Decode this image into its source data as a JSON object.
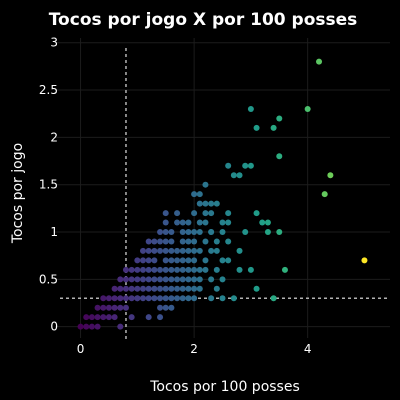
{
  "chart_data": {
    "type": "scatter",
    "title": "Tocos por jogo X por 100 posses",
    "xlabel": "Tocos por 100 posses",
    "ylabel": "Tocos por jogo",
    "xlim": [
      -0.45,
      5.45
    ],
    "ylim": [
      -0.12,
      3.05
    ],
    "x_ticks": [
      0,
      2,
      4
    ],
    "y_ticks": [
      0,
      0.5,
      1,
      1.5,
      2,
      2.5,
      3
    ],
    "x_tick_labels": [
      "0",
      "2",
      "4"
    ],
    "y_tick_labels": [
      "0",
      "0.5",
      "1",
      "1.5",
      "2",
      "2.5",
      "3"
    ],
    "grid": true,
    "colorscale": "viridis",
    "color_by": "x",
    "color_range": [
      0,
      5
    ],
    "reference_lines": {
      "x": 0.8,
      "y": 0.3
    },
    "points": [
      [
        0,
        0
      ],
      [
        0.1,
        0
      ],
      [
        0.2,
        0
      ],
      [
        0.3,
        0
      ],
      [
        0.2,
        0.1
      ],
      [
        0.3,
        0.1
      ],
      [
        0.4,
        0.1
      ],
      [
        0.5,
        0.1
      ],
      [
        0.6,
        0.1
      ],
      [
        0.1,
        0.1
      ],
      [
        0.3,
        0.2
      ],
      [
        0.4,
        0.2
      ],
      [
        0.5,
        0.2
      ],
      [
        0.6,
        0.2
      ],
      [
        0.7,
        0.2
      ],
      [
        0.8,
        0.2
      ],
      [
        0.4,
        0.3
      ],
      [
        0.5,
        0.3
      ],
      [
        0.6,
        0.3
      ],
      [
        0.7,
        0.3
      ],
      [
        0.8,
        0.3
      ],
      [
        0.9,
        0.3
      ],
      [
        1.0,
        0.3
      ],
      [
        0.6,
        0.4
      ],
      [
        0.7,
        0.4
      ],
      [
        0.8,
        0.4
      ],
      [
        0.9,
        0.4
      ],
      [
        1.0,
        0.4
      ],
      [
        0.7,
        0.5
      ],
      [
        0.8,
        0.5
      ],
      [
        0.9,
        0.5
      ],
      [
        1.0,
        0.5
      ],
      [
        1.1,
        0.5
      ],
      [
        0.8,
        0.6
      ],
      [
        0.9,
        0.6
      ],
      [
        1.0,
        0.6
      ],
      [
        1.1,
        0.6
      ],
      [
        1.2,
        0.6
      ],
      [
        1.0,
        0.7
      ],
      [
        1.1,
        0.7
      ],
      [
        1.2,
        0.7
      ],
      [
        1.3,
        0.7
      ],
      [
        1.1,
        0.8
      ],
      [
        1.2,
        0.8
      ],
      [
        1.3,
        0.8
      ],
      [
        1.4,
        0.8
      ],
      [
        1.2,
        0.9
      ],
      [
        1.3,
        0.9
      ],
      [
        1.4,
        0.9
      ],
      [
        1.0,
        0.3
      ],
      [
        1.1,
        0.3
      ],
      [
        1.2,
        0.3
      ],
      [
        1.3,
        0.3
      ],
      [
        1.4,
        0.3
      ],
      [
        1.5,
        0.3
      ],
      [
        1.6,
        0.3
      ],
      [
        1.7,
        0.3
      ],
      [
        1.8,
        0.3
      ],
      [
        1.9,
        0.3
      ],
      [
        2.0,
        0.3
      ],
      [
        2.3,
        0.3
      ],
      [
        2.5,
        0.3
      ],
      [
        1.1,
        0.4
      ],
      [
        1.2,
        0.4
      ],
      [
        1.3,
        0.4
      ],
      [
        1.4,
        0.4
      ],
      [
        1.5,
        0.4
      ],
      [
        1.6,
        0.4
      ],
      [
        1.7,
        0.4
      ],
      [
        1.8,
        0.4
      ],
      [
        1.9,
        0.4
      ],
      [
        2.0,
        0.4
      ],
      [
        2.1,
        0.4
      ],
      [
        1.2,
        0.5
      ],
      [
        1.3,
        0.5
      ],
      [
        1.4,
        0.5
      ],
      [
        1.5,
        0.5
      ],
      [
        1.6,
        0.5
      ],
      [
        1.7,
        0.5
      ],
      [
        1.8,
        0.5
      ],
      [
        1.9,
        0.5
      ],
      [
        2.0,
        0.5
      ],
      [
        2.1,
        0.5
      ],
      [
        2.3,
        0.5
      ],
      [
        1.3,
        0.6
      ],
      [
        1.4,
        0.6
      ],
      [
        1.5,
        0.6
      ],
      [
        1.6,
        0.6
      ],
      [
        1.7,
        0.6
      ],
      [
        1.8,
        0.6
      ],
      [
        1.9,
        0.6
      ],
      [
        2.0,
        0.6
      ],
      [
        2.1,
        0.6
      ],
      [
        2.2,
        0.6
      ],
      [
        1.5,
        0.7
      ],
      [
        1.6,
        0.7
      ],
      [
        1.7,
        0.7
      ],
      [
        1.8,
        0.7
      ],
      [
        1.9,
        0.7
      ],
      [
        2.0,
        0.7
      ],
      [
        2.2,
        0.7
      ],
      [
        2.5,
        0.7
      ],
      [
        1.5,
        0.8
      ],
      [
        1.6,
        0.8
      ],
      [
        1.7,
        0.8
      ],
      [
        1.8,
        0.8
      ],
      [
        1.9,
        0.8
      ],
      [
        2.0,
        0.8
      ],
      [
        2.1,
        0.8
      ],
      [
        2.3,
        0.8
      ],
      [
        1.5,
        0.9
      ],
      [
        1.6,
        0.9
      ],
      [
        1.8,
        0.9
      ],
      [
        1.9,
        0.9
      ],
      [
        2.0,
        0.9
      ],
      [
        2.2,
        0.9
      ],
      [
        1.4,
        1.0
      ],
      [
        1.5,
        1.0
      ],
      [
        1.6,
        1.0
      ],
      [
        1.8,
        1.0
      ],
      [
        1.9,
        1.0
      ],
      [
        2.0,
        1.0
      ],
      [
        2.1,
        1.0
      ],
      [
        2.3,
        1.0
      ],
      [
        1.4,
        0.2
      ],
      [
        1.5,
        0.2
      ],
      [
        1.6,
        0.2
      ],
      [
        1.4,
        0.1
      ],
      [
        1.2,
        0.1
      ],
      [
        0.7,
        0.0
      ],
      [
        0.9,
        0.1
      ],
      [
        1.5,
        1.1
      ],
      [
        1.7,
        1.1
      ],
      [
        1.8,
        1.1
      ],
      [
        1.9,
        1.1
      ],
      [
        2.1,
        1.1
      ],
      [
        2.2,
        1.1
      ],
      [
        1.5,
        1.2
      ],
      [
        1.7,
        1.2
      ],
      [
        2.0,
        1.2
      ],
      [
        2.2,
        1.2
      ],
      [
        2.3,
        1.2
      ],
      [
        2.1,
        1.3
      ],
      [
        2.2,
        1.3
      ],
      [
        2.3,
        1.3
      ],
      [
        2.4,
        1.3
      ],
      [
        2.0,
        1.4
      ],
      [
        2.1,
        1.4
      ],
      [
        2.2,
        1.5
      ],
      [
        2.4,
        0.8
      ],
      [
        2.4,
        0.9
      ],
      [
        2.3,
        1.0
      ],
      [
        2.4,
        0.6
      ],
      [
        2.5,
        0.5
      ],
      [
        2.4,
        0.4
      ],
      [
        2.5,
        1.1
      ],
      [
        2.6,
        1.1
      ],
      [
        2.5,
        1.0
      ],
      [
        2.6,
        1.2
      ],
      [
        2.6,
        0.9
      ],
      [
        2.6,
        0.7
      ],
      [
        2.7,
        1.6
      ],
      [
        2.8,
        1.6
      ],
      [
        2.9,
        1.7
      ],
      [
        3.0,
        1.7
      ],
      [
        2.6,
        1.7
      ],
      [
        3.1,
        1.2
      ],
      [
        3.2,
        1.1
      ],
      [
        3.3,
        1.1
      ],
      [
        2.8,
        0.8
      ],
      [
        2.9,
        1.0
      ],
      [
        2.8,
        0.6
      ],
      [
        2.7,
        0.3
      ],
      [
        3.0,
        0.6
      ],
      [
        3.1,
        0.4
      ],
      [
        3.0,
        2.3
      ],
      [
        3.1,
        2.1
      ],
      [
        3.5,
        2.2
      ],
      [
        3.4,
        2.1
      ],
      [
        3.5,
        1.8
      ],
      [
        3.3,
        1.0
      ],
      [
        3.5,
        1.0
      ],
      [
        3.6,
        0.6
      ],
      [
        3.4,
        0.3
      ],
      [
        4.0,
        2.3
      ],
      [
        4.2,
        2.8
      ],
      [
        4.4,
        1.6
      ],
      [
        4.3,
        1.4
      ],
      [
        5.0,
        0.7
      ]
    ]
  }
}
